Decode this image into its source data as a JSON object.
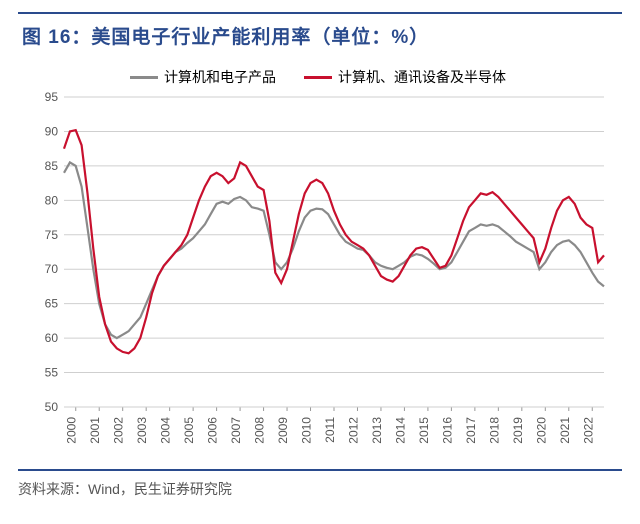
{
  "title": "图 16：美国电子行业产能利用率（单位：%）",
  "source": "资料来源：Wind，民生证券研究院",
  "chart": {
    "type": "line",
    "background_color": "#ffffff",
    "grid_color": "#cfcfcf",
    "title_color": "#2a4b8d",
    "title_fontsize": 19,
    "axis_fontsize": 12,
    "ylim": [
      50,
      95
    ],
    "ytick_step": 5,
    "yticks": [
      50,
      55,
      60,
      65,
      70,
      75,
      80,
      85,
      90,
      95
    ],
    "xlim": [
      2000,
      2023
    ],
    "xticks": [
      2000,
      2001,
      2002,
      2003,
      2004,
      2005,
      2006,
      2007,
      2008,
      2009,
      2010,
      2011,
      2012,
      2013,
      2014,
      2015,
      2016,
      2017,
      2018,
      2019,
      2020,
      2021,
      2022
    ],
    "xtick_rotation": -90,
    "legend": {
      "position": "top-center",
      "items": [
        {
          "label": "计算机和电子产品",
          "color": "#8a8a8a"
        },
        {
          "label": "计算机、通讯设备及半导体",
          "color": "#c8102e"
        }
      ]
    },
    "series": [
      {
        "name": "计算机和电子产品",
        "color": "#8a8a8a",
        "line_width": 2.2,
        "x": [
          2000.0,
          2000.25,
          2000.5,
          2000.75,
          2001.0,
          2001.25,
          2001.5,
          2001.75,
          2002.0,
          2002.25,
          2002.5,
          2002.75,
          2003.0,
          2003.25,
          2003.5,
          2003.75,
          2004.0,
          2004.25,
          2004.5,
          2004.75,
          2005.0,
          2005.25,
          2005.5,
          2005.75,
          2006.0,
          2006.25,
          2006.5,
          2006.75,
          2007.0,
          2007.25,
          2007.5,
          2007.75,
          2008.0,
          2008.25,
          2008.5,
          2008.75,
          2009.0,
          2009.25,
          2009.5,
          2009.75,
          2010.0,
          2010.25,
          2010.5,
          2010.75,
          2011.0,
          2011.25,
          2011.5,
          2011.75,
          2012.0,
          2012.25,
          2012.5,
          2012.75,
          2013.0,
          2013.25,
          2013.5,
          2013.75,
          2014.0,
          2014.25,
          2014.5,
          2014.75,
          2015.0,
          2015.25,
          2015.5,
          2015.75,
          2016.0,
          2016.25,
          2016.5,
          2016.75,
          2017.0,
          2017.25,
          2017.5,
          2017.75,
          2018.0,
          2018.25,
          2018.5,
          2018.75,
          2019.0,
          2019.25,
          2019.5,
          2019.75,
          2020.0,
          2020.25,
          2020.5,
          2020.75,
          2021.0,
          2021.25,
          2021.5,
          2021.75,
          2022.0,
          2022.25,
          2022.5,
          2022.75,
          2023.0
        ],
        "y": [
          84.0,
          85.5,
          85.0,
          82.0,
          76.0,
          70.0,
          65.0,
          62.0,
          60.5,
          60.0,
          60.5,
          61.0,
          62.0,
          63.0,
          65.0,
          67.0,
          69.0,
          70.5,
          71.5,
          72.5,
          73.0,
          73.8,
          74.5,
          75.5,
          76.5,
          78.0,
          79.5,
          79.8,
          79.5,
          80.2,
          80.5,
          80.0,
          79.0,
          78.8,
          78.5,
          75.0,
          71.0,
          70.0,
          71.0,
          73.0,
          75.5,
          77.5,
          78.5,
          78.8,
          78.7,
          78.0,
          76.5,
          75.0,
          74.0,
          73.5,
          73.0,
          72.8,
          72.0,
          71.0,
          70.5,
          70.2,
          70.0,
          70.5,
          71.0,
          71.8,
          72.2,
          72.0,
          71.5,
          70.8,
          70.0,
          70.2,
          71.0,
          72.5,
          74.0,
          75.5,
          76.0,
          76.5,
          76.3,
          76.5,
          76.2,
          75.5,
          74.8,
          74.0,
          73.5,
          73.0,
          72.5,
          70.0,
          71.0,
          72.5,
          73.5,
          74.0,
          74.2,
          73.5,
          72.5,
          71.0,
          69.5,
          68.2,
          67.5
        ]
      },
      {
        "name": "计算机、通讯设备及半导体",
        "color": "#c8102e",
        "line_width": 2.2,
        "x": [
          2000.0,
          2000.25,
          2000.5,
          2000.75,
          2001.0,
          2001.25,
          2001.5,
          2001.75,
          2002.0,
          2002.25,
          2002.5,
          2002.75,
          2003.0,
          2003.25,
          2003.5,
          2003.75,
          2004.0,
          2004.25,
          2004.5,
          2004.75,
          2005.0,
          2005.25,
          2005.5,
          2005.75,
          2006.0,
          2006.25,
          2006.5,
          2006.75,
          2007.0,
          2007.25,
          2007.5,
          2007.75,
          2008.0,
          2008.25,
          2008.5,
          2008.75,
          2009.0,
          2009.25,
          2009.5,
          2009.75,
          2010.0,
          2010.25,
          2010.5,
          2010.75,
          2011.0,
          2011.25,
          2011.5,
          2011.75,
          2012.0,
          2012.25,
          2012.5,
          2012.75,
          2013.0,
          2013.25,
          2013.5,
          2013.75,
          2014.0,
          2014.25,
          2014.5,
          2014.75,
          2015.0,
          2015.25,
          2015.5,
          2015.75,
          2016.0,
          2016.25,
          2016.5,
          2016.75,
          2017.0,
          2017.25,
          2017.5,
          2017.75,
          2018.0,
          2018.25,
          2018.5,
          2018.75,
          2019.0,
          2019.25,
          2019.5,
          2019.75,
          2020.0,
          2020.25,
          2020.5,
          2020.75,
          2021.0,
          2021.25,
          2021.5,
          2021.75,
          2022.0,
          2022.25,
          2022.5,
          2022.75,
          2023.0
        ],
        "y": [
          87.5,
          90.0,
          90.2,
          88.0,
          81.0,
          73.0,
          66.0,
          62.0,
          59.5,
          58.5,
          58.0,
          57.8,
          58.5,
          60.0,
          63.0,
          66.5,
          69.0,
          70.5,
          71.5,
          72.5,
          73.5,
          75.0,
          77.5,
          80.0,
          82.0,
          83.5,
          84.0,
          83.5,
          82.5,
          83.2,
          85.5,
          85.0,
          83.5,
          82.0,
          81.5,
          77.0,
          69.5,
          68.0,
          70.0,
          74.0,
          78.0,
          81.0,
          82.5,
          83.0,
          82.5,
          81.0,
          78.5,
          76.5,
          75.0,
          74.0,
          73.5,
          73.0,
          72.0,
          70.5,
          69.0,
          68.5,
          68.2,
          69.0,
          70.5,
          72.0,
          73.0,
          73.2,
          72.8,
          71.5,
          70.2,
          70.5,
          72.0,
          74.5,
          77.0,
          79.0,
          80.0,
          81.0,
          80.8,
          81.2,
          80.5,
          79.5,
          78.5,
          77.5,
          76.5,
          75.5,
          74.5,
          71.0,
          73.0,
          76.0,
          78.5,
          80.0,
          80.5,
          79.5,
          77.5,
          76.5,
          76.0,
          71.0,
          72.0
        ]
      }
    ]
  }
}
